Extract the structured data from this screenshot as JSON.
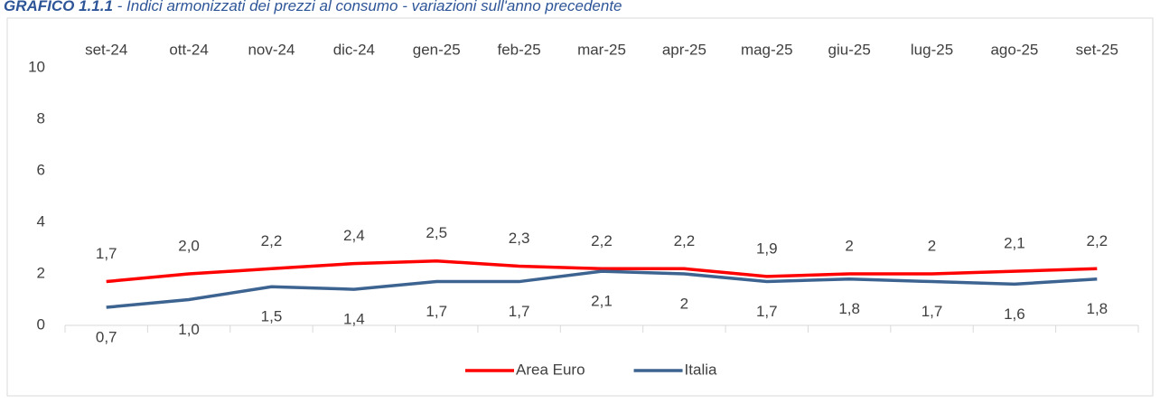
{
  "chart_data": {
    "type": "line",
    "title": "GRAFICO 1.1.1",
    "subtitle": " - Indici armonizzati dei prezzi al consumo - variazioni sull'anno precedente",
    "categories": [
      "set-24",
      "ott-24",
      "nov-24",
      "dic-24",
      "gen-25",
      "feb-25",
      "mar-25",
      "apr-25",
      "mag-25",
      "giu-25",
      "lug-25",
      "ago-25",
      "set-25"
    ],
    "series": [
      {
        "name": "Area Euro",
        "color": "#ff0000",
        "values": [
          1.7,
          2.0,
          2.2,
          2.4,
          2.5,
          2.3,
          2.2,
          2.2,
          1.9,
          2,
          2,
          2.1,
          2.2
        ],
        "value_labels": [
          "1,7",
          "2,0",
          "2,2",
          "2,4",
          "2,5",
          "2,3",
          "2,2",
          "2,2",
          "1,9",
          "2",
          "2",
          "2,1",
          "2,2"
        ]
      },
      {
        "name": "Italia",
        "color": "#3d6491",
        "values": [
          0.7,
          1.0,
          1.5,
          1.4,
          1.7,
          1.7,
          2.1,
          2,
          1.7,
          1.8,
          1.7,
          1.6,
          1.8
        ],
        "value_labels": [
          "0,7",
          "1,0",
          "1,5",
          "1,4",
          "1,7",
          "1,7",
          "2,1",
          "2",
          "1,7",
          "1,8",
          "1,7",
          "1,6",
          "1,8"
        ]
      }
    ],
    "ylim": [
      0,
      10
    ],
    "yticks": [
      0,
      2,
      4,
      6,
      8,
      10
    ],
    "grid": true,
    "legend": "bottom"
  }
}
